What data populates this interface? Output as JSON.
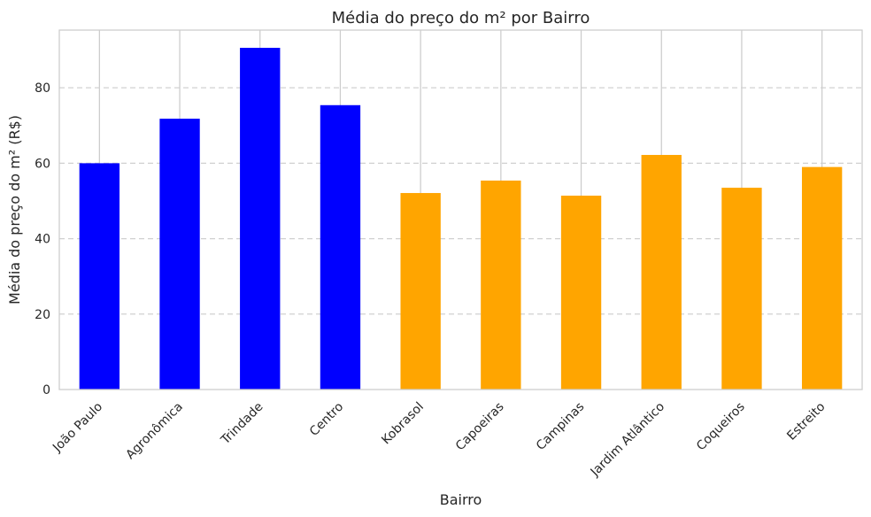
{
  "chart_data": {
    "type": "bar",
    "title": "Média do preço do m² por Bairro",
    "xlabel": "Bairro",
    "ylabel": "Média do preço do m² (R$)",
    "categories": [
      "João Paulo",
      "Agronômica",
      "Trindade",
      "Centro",
      "Kobrasol",
      "Capoeiras",
      "Campinas",
      "Jardim Atlântico",
      "Coqueiros",
      "Estreito"
    ],
    "values": [
      60.0,
      71.8,
      90.6,
      75.4,
      52.1,
      55.4,
      51.4,
      62.2,
      53.5,
      59.0
    ],
    "bar_colors": [
      "#0000ff",
      "#0000ff",
      "#0000ff",
      "#0000ff",
      "#ffa500",
      "#ffa500",
      "#ffa500",
      "#ffa500",
      "#ffa500",
      "#ffa500"
    ],
    "ylim": [
      0,
      95.3
    ],
    "yticks": [
      0,
      20,
      40,
      60,
      80
    ],
    "grid": true,
    "legend": false
  }
}
